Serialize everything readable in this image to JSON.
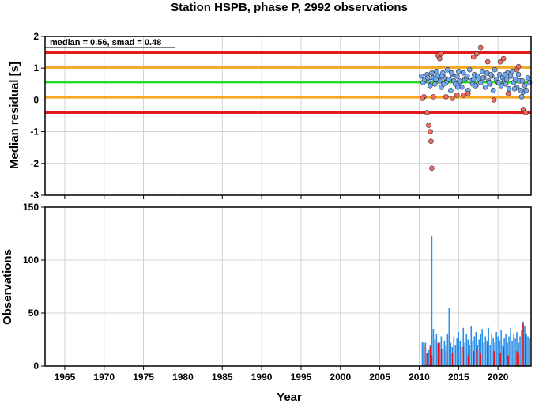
{
  "title": "Station HSPB, phase P, 2992 observations",
  "x_axis": {
    "label": "Year",
    "range": [
      1962.5,
      2024.2
    ],
    "ticks": [
      1965,
      1970,
      1975,
      1980,
      1985,
      1990,
      1995,
      2000,
      2005,
      2010,
      2015,
      2020
    ]
  },
  "residual_panel": {
    "ylabel": "Median residual [s]",
    "annotation": "median = 0.56, smad = 0.48",
    "ylim": [
      -3,
      2
    ],
    "yticks": [
      -3,
      -2,
      -1,
      0,
      1,
      2
    ],
    "median": 0.56,
    "reference_lines": [
      {
        "y": 1.49,
        "color": "#e41a1c"
      },
      {
        "y": 1.02,
        "color": "#f5a623"
      },
      {
        "y": 0.56,
        "color": "#22dd22"
      },
      {
        "y": 0.08,
        "color": "#f5a623"
      },
      {
        "y": -0.4,
        "color": "#e41a1c"
      }
    ],
    "point_colors": {
      "inlier": "#6fa8f5",
      "outlier": "#f26b5e"
    }
  },
  "count_panel": {
    "ylabel": "Observations",
    "ylim": [
      0,
      150
    ],
    "yticks": [
      0,
      50,
      100,
      150
    ],
    "colors": {
      "all": "#2b8fe8",
      "outlier": "#e8101a"
    }
  },
  "chart_data": [
    {
      "type": "scatter",
      "xlabel": "",
      "ylabel": "Median residual [s]",
      "ylim": [
        -3,
        2
      ],
      "series": [
        {
          "name": "",
          "kind": "inlier",
          "x": [
            2010.3,
            2010.5,
            2010.7,
            2011.0,
            2011.2,
            2011.4,
            2011.6,
            2011.8,
            2012.0,
            2012.2,
            2012.4,
            2012.6,
            2012.8,
            2013.0,
            2013.2,
            2013.4,
            2013.6,
            2013.8,
            2014.0,
            2014.2,
            2014.4,
            2014.6,
            2014.8,
            2015.0,
            2015.2,
            2015.4,
            2015.6,
            2015.8,
            2016.0,
            2016.2,
            2016.4,
            2016.6,
            2016.8,
            2017.0,
            2017.2,
            2017.4,
            2017.6,
            2017.8,
            2018.0,
            2018.2,
            2018.4,
            2018.6,
            2018.8,
            2019.0,
            2019.2,
            2019.4,
            2019.6,
            2019.8,
            2020.0,
            2020.2,
            2020.4,
            2020.6,
            2020.8,
            2021.0,
            2021.2,
            2021.4,
            2021.6,
            2021.8,
            2022.0,
            2022.2,
            2022.4,
            2022.6,
            2022.8,
            2023.0,
            2023.2,
            2023.4,
            2023.6,
            2023.8,
            2024.0,
            2011.1,
            2012.1,
            2013.1,
            2014.1,
            2015.1,
            2016.1,
            2017.1,
            2018.1,
            2019.1,
            2020.1,
            2021.1,
            2022.1,
            2023.1,
            2012.9,
            2014.9,
            2016.9,
            2018.9,
            2020.9,
            2022.9
          ],
          "y": [
            0.75,
            0.55,
            0.65,
            0.8,
            0.6,
            0.45,
            0.85,
            0.7,
            0.5,
            0.9,
            0.75,
            0.6,
            0.4,
            0.85,
            0.7,
            0.55,
            0.95,
            0.65,
            0.3,
            0.8,
            0.6,
            0.5,
            0.75,
            0.9,
            0.55,
            0.4,
            0.85,
            0.65,
            0.7,
            0.3,
            0.95,
            0.6,
            0.5,
            0.8,
            0.45,
            0.75,
            0.65,
            0.55,
            0.9,
            0.7,
            0.4,
            0.85,
            0.6,
            0.5,
            0.75,
            0.3,
            0.95,
            0.65,
            0.55,
            0.8,
            0.45,
            0.7,
            0.6,
            0.5,
            0.85,
            0.35,
            0.75,
            0.9,
            0.55,
            0.65,
            0.4,
            0.8,
            0.6,
            0.1,
            0.25,
            0.45,
            0.3,
            0.7,
            0.55,
            0.7,
            0.65,
            0.5,
            0.85,
            0.6,
            0.75,
            0.45,
            0.7,
            0.8,
            0.55,
            0.65,
            0.35,
            0.6,
            0.75,
            0.4,
            0.65,
            0.55,
            0.8,
            0.3
          ]
        },
        {
          "name": "",
          "kind": "outlier",
          "x": [
            2010.6,
            2011.0,
            2011.2,
            2011.4,
            2011.5,
            2011.6,
            2012.4,
            2012.6,
            2012.8,
            2013.4,
            2014.2,
            2015.6,
            2016.2,
            2016.9,
            2017.3,
            2017.8,
            2018.7,
            2019.5,
            2020.3,
            2020.7,
            2021.3,
            2022.4,
            2022.6,
            2023.2,
            2023.5,
            2010.4,
            2011.8,
            2014.8
          ],
          "y": [
            0.1,
            -0.4,
            -0.8,
            -1.0,
            -1.3,
            -2.15,
            1.4,
            1.3,
            1.45,
            0.1,
            0.05,
            0.15,
            0.2,
            1.35,
            1.45,
            1.65,
            1.2,
            0.0,
            1.2,
            1.3,
            0.2,
            0.95,
            1.05,
            -0.3,
            -0.4,
            0.05,
            0.1,
            0.15
          ]
        }
      ]
    },
    {
      "type": "bar",
      "xlabel": "Year",
      "ylabel": "Observations",
      "ylim": [
        0,
        150
      ],
      "series": [
        {
          "name": "",
          "kind": "all",
          "x": [
            2010.4,
            2010.6,
            2010.8,
            2011.0,
            2011.2,
            2011.4,
            2011.6,
            2011.8,
            2012.0,
            2012.2,
            2012.4,
            2012.6,
            2012.8,
            2013.0,
            2013.2,
            2013.4,
            2013.6,
            2013.8,
            2014.0,
            2014.2,
            2014.4,
            2014.6,
            2014.8,
            2015.0,
            2015.2,
            2015.4,
            2015.6,
            2015.8,
            2016.0,
            2016.2,
            2016.4,
            2016.6,
            2016.8,
            2017.0,
            2017.2,
            2017.4,
            2017.6,
            2017.8,
            2018.0,
            2018.2,
            2018.4,
            2018.6,
            2018.8,
            2019.0,
            2019.2,
            2019.4,
            2019.6,
            2019.8,
            2020.0,
            2020.2,
            2020.4,
            2020.6,
            2020.8,
            2021.0,
            2021.2,
            2021.4,
            2021.6,
            2021.8,
            2022.0,
            2022.2,
            2022.4,
            2022.6,
            2022.8,
            2023.0,
            2023.2,
            2023.4,
            2023.6,
            2023.8,
            2024.0
          ],
          "values": [
            23,
            18,
            22,
            12,
            15,
            20,
            123,
            35,
            25,
            30,
            18,
            22,
            28,
            16,
            24,
            20,
            30,
            55,
            22,
            18,
            28,
            20,
            26,
            32,
            24,
            18,
            36,
            22,
            30,
            25,
            20,
            38,
            24,
            28,
            32,
            20,
            25,
            30,
            35,
            22,
            28,
            24,
            36,
            20,
            30,
            26,
            22,
            32,
            28,
            24,
            34,
            20,
            26,
            30,
            22,
            28,
            36,
            24,
            30,
            26,
            32,
            22,
            28,
            34,
            42,
            38,
            30,
            28,
            26
          ]
        },
        {
          "name": "",
          "kind": "outlier",
          "x": [
            2010.6,
            2011.0,
            2011.4,
            2011.6,
            2012.4,
            2012.8,
            2013.4,
            2014.2,
            2015.6,
            2016.2,
            2016.9,
            2017.3,
            2017.8,
            2018.7,
            2019.5,
            2020.3,
            2020.7,
            2021.3,
            2022.4,
            2022.6,
            2023.2,
            2023.5
          ],
          "values": [
            22,
            12,
            18,
            10,
            22,
            16,
            14,
            12,
            18,
            10,
            14,
            16,
            12,
            20,
            14,
            12,
            18,
            10,
            14,
            12,
            40,
            30
          ]
        }
      ]
    }
  ]
}
